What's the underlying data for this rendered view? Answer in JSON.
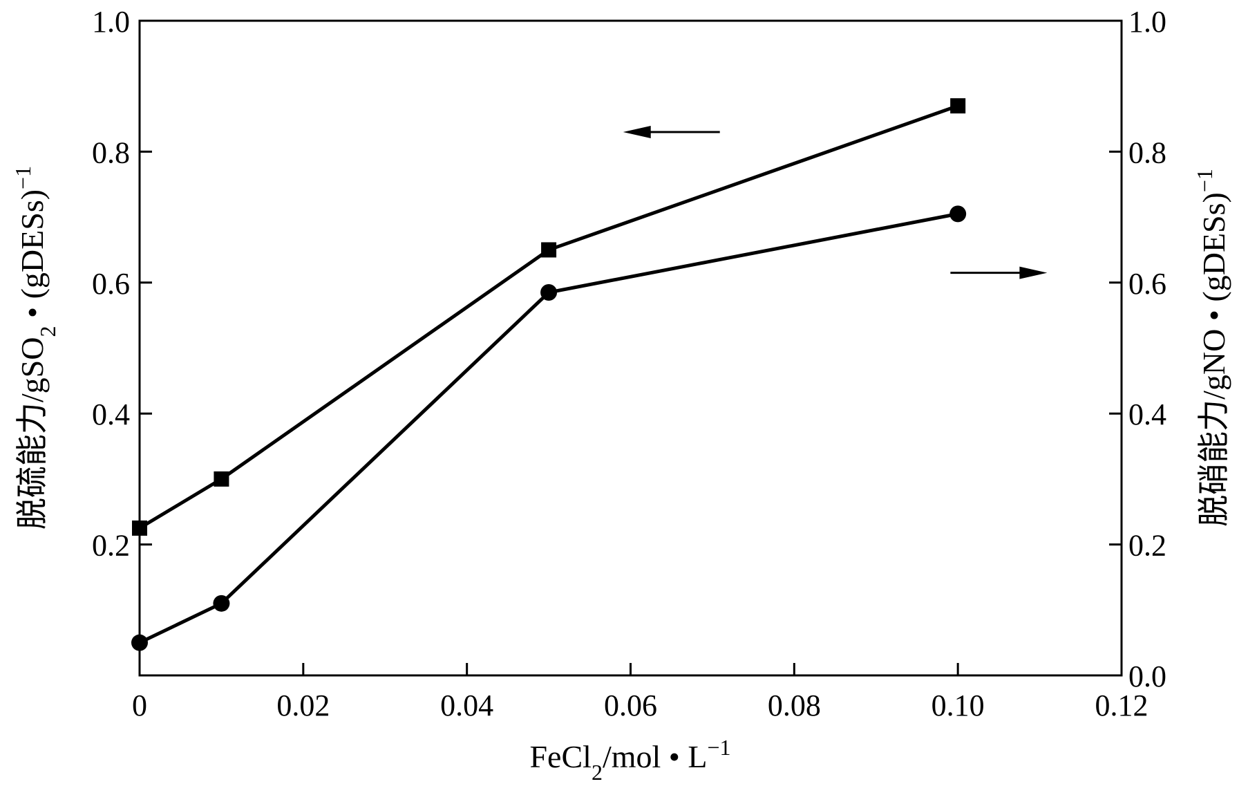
{
  "chart_data": {
    "type": "line",
    "xlabel_main": "FeCl",
    "xlabel_sub": "2",
    "xlabel_rest": "/mol • L",
    "xlabel_sup": "−1",
    "ylabel_left_main": "脱硫能力/gSO",
    "ylabel_left_sub": "2",
    "ylabel_left_rest": " • (gDESs)",
    "ylabel_left_sup": "−1",
    "ylabel_right_main": "脱硝能力/gNO • (gDESs)",
    "ylabel_right_sup": "−1",
    "xlim": [
      0,
      0.12
    ],
    "ylim_left": [
      0,
      1.0
    ],
    "ylim_right": [
      0,
      1.0
    ],
    "x_ticks": [
      0,
      0.02,
      0.04,
      0.06,
      0.08,
      0.1,
      0.12
    ],
    "x_tick_labels": [
      "0",
      "0.02",
      "0.04",
      "0.06",
      "0.08",
      "0.10",
      "0.12"
    ],
    "y_left_ticks": [
      0.2,
      0.4,
      0.6,
      0.8,
      1.0
    ],
    "y_left_tick_labels": [
      "0.2",
      "0.4",
      "0.6",
      "0.8",
      "1.0"
    ],
    "y_right_ticks": [
      0.0,
      0.2,
      0.4,
      0.6,
      0.8,
      1.0
    ],
    "y_right_tick_labels": [
      "0.0",
      "0.2",
      "0.4",
      "0.6",
      "0.8",
      "1.0"
    ],
    "series": [
      {
        "name": "SO2",
        "axis": "left",
        "marker": "square",
        "x": [
          0,
          0.01,
          0.05,
          0.1
        ],
        "y": [
          0.225,
          0.3,
          0.65,
          0.87
        ]
      },
      {
        "name": "NO",
        "axis": "right",
        "marker": "circle",
        "x": [
          0,
          0.01,
          0.05,
          0.1
        ],
        "y": [
          0.05,
          0.11,
          0.585,
          0.705
        ]
      }
    ],
    "annotations": [
      {
        "type": "arrow",
        "direction": "left",
        "refers_to": "SO2",
        "at_x": 0.065,
        "at_y": 0.83
      },
      {
        "type": "arrow",
        "direction": "right",
        "refers_to": "NO",
        "at_x": 0.105,
        "at_y": 0.615
      }
    ],
    "grid": false,
    "colors": {
      "line": "#000000",
      "background": "#ffffff"
    }
  }
}
